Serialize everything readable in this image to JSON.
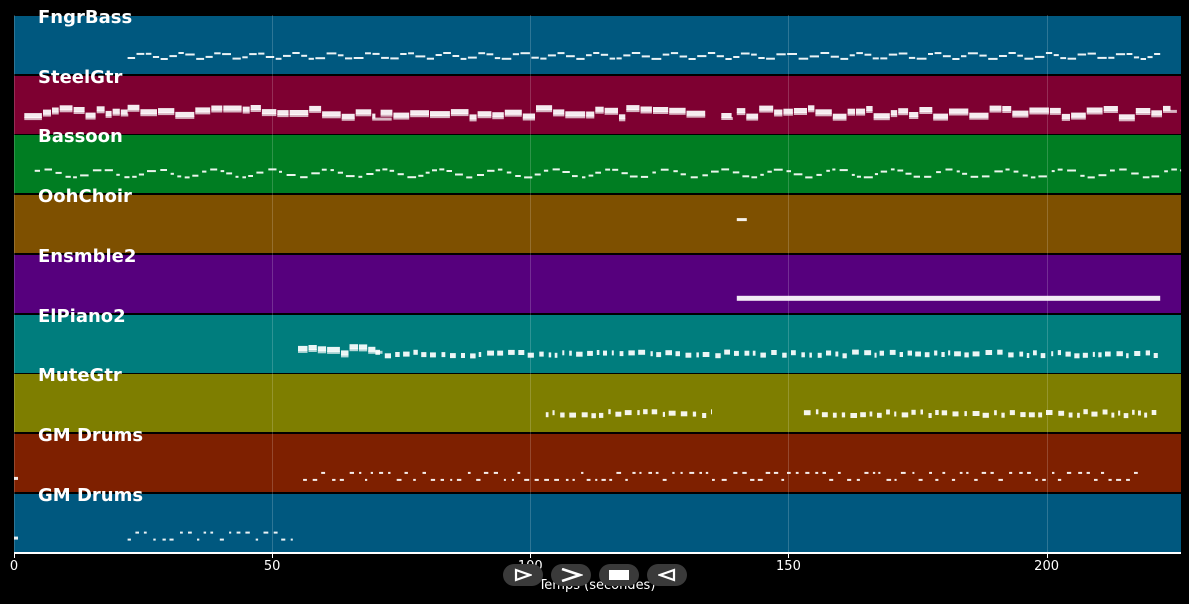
{
  "tracks": [
    {
      "name": "FngrBass",
      "color": "#00587f"
    },
    {
      "name": "SteelGtr",
      "color": "#7e0031"
    },
    {
      "name": "Bassoon",
      "color": "#007d22"
    },
    {
      "name": "OohChoir",
      "color": "#7e5000"
    },
    {
      "name": "Ensmble2",
      "color": "#56007d"
    },
    {
      "name": "ElPiano2",
      "color": "#007d7d"
    },
    {
      "name": "MuteGtr",
      "color": "#7e7e00"
    },
    {
      "name": "GM Drums",
      "color": "#7e2000"
    },
    {
      "name": "GM Drums",
      "color": "#00587f"
    }
  ],
  "axis": {
    "label": "Temps (secondes)",
    "range": [
      0,
      226
    ],
    "ticks": [
      {
        "value": 0,
        "label": "0"
      },
      {
        "value": 50,
        "label": "50"
      },
      {
        "value": 100,
        "label": "100"
      },
      {
        "value": 150,
        "label": "150"
      },
      {
        "value": 200,
        "label": "200"
      }
    ]
  },
  "regions": [
    [
      [
        22,
        222,
        "bass"
      ]
    ],
    [
      [
        2,
        22,
        "blocks"
      ],
      [
        22,
        70,
        "blocks"
      ],
      [
        71,
        134,
        "blocks"
      ],
      [
        137,
        139,
        "blocks"
      ],
      [
        140,
        224,
        "blocks"
      ]
    ],
    [
      [
        4,
        226,
        "wave"
      ]
    ],
    [
      [
        140,
        143,
        "short"
      ]
    ],
    [
      [
        140,
        222,
        "line"
      ]
    ],
    [
      [
        55,
        70,
        "blocks"
      ],
      [
        70,
        222,
        "sparse"
      ]
    ],
    [
      [
        103,
        135,
        "sparse"
      ],
      [
        153,
        222,
        "sparse"
      ]
    ],
    [
      [
        0,
        1,
        "dot"
      ],
      [
        56,
        218,
        "drums"
      ]
    ],
    [
      [
        0,
        2,
        "dot"
      ],
      [
        22,
        54,
        "drums"
      ]
    ]
  ],
  "controls": [
    {
      "name": "play-button",
      "icon": "play-outline-icon"
    },
    {
      "name": "forward-button",
      "icon": "chevron-right-icon"
    },
    {
      "name": "stop-button",
      "icon": "stop-icon"
    },
    {
      "name": "back-button",
      "icon": "play-back-outline-icon"
    }
  ]
}
